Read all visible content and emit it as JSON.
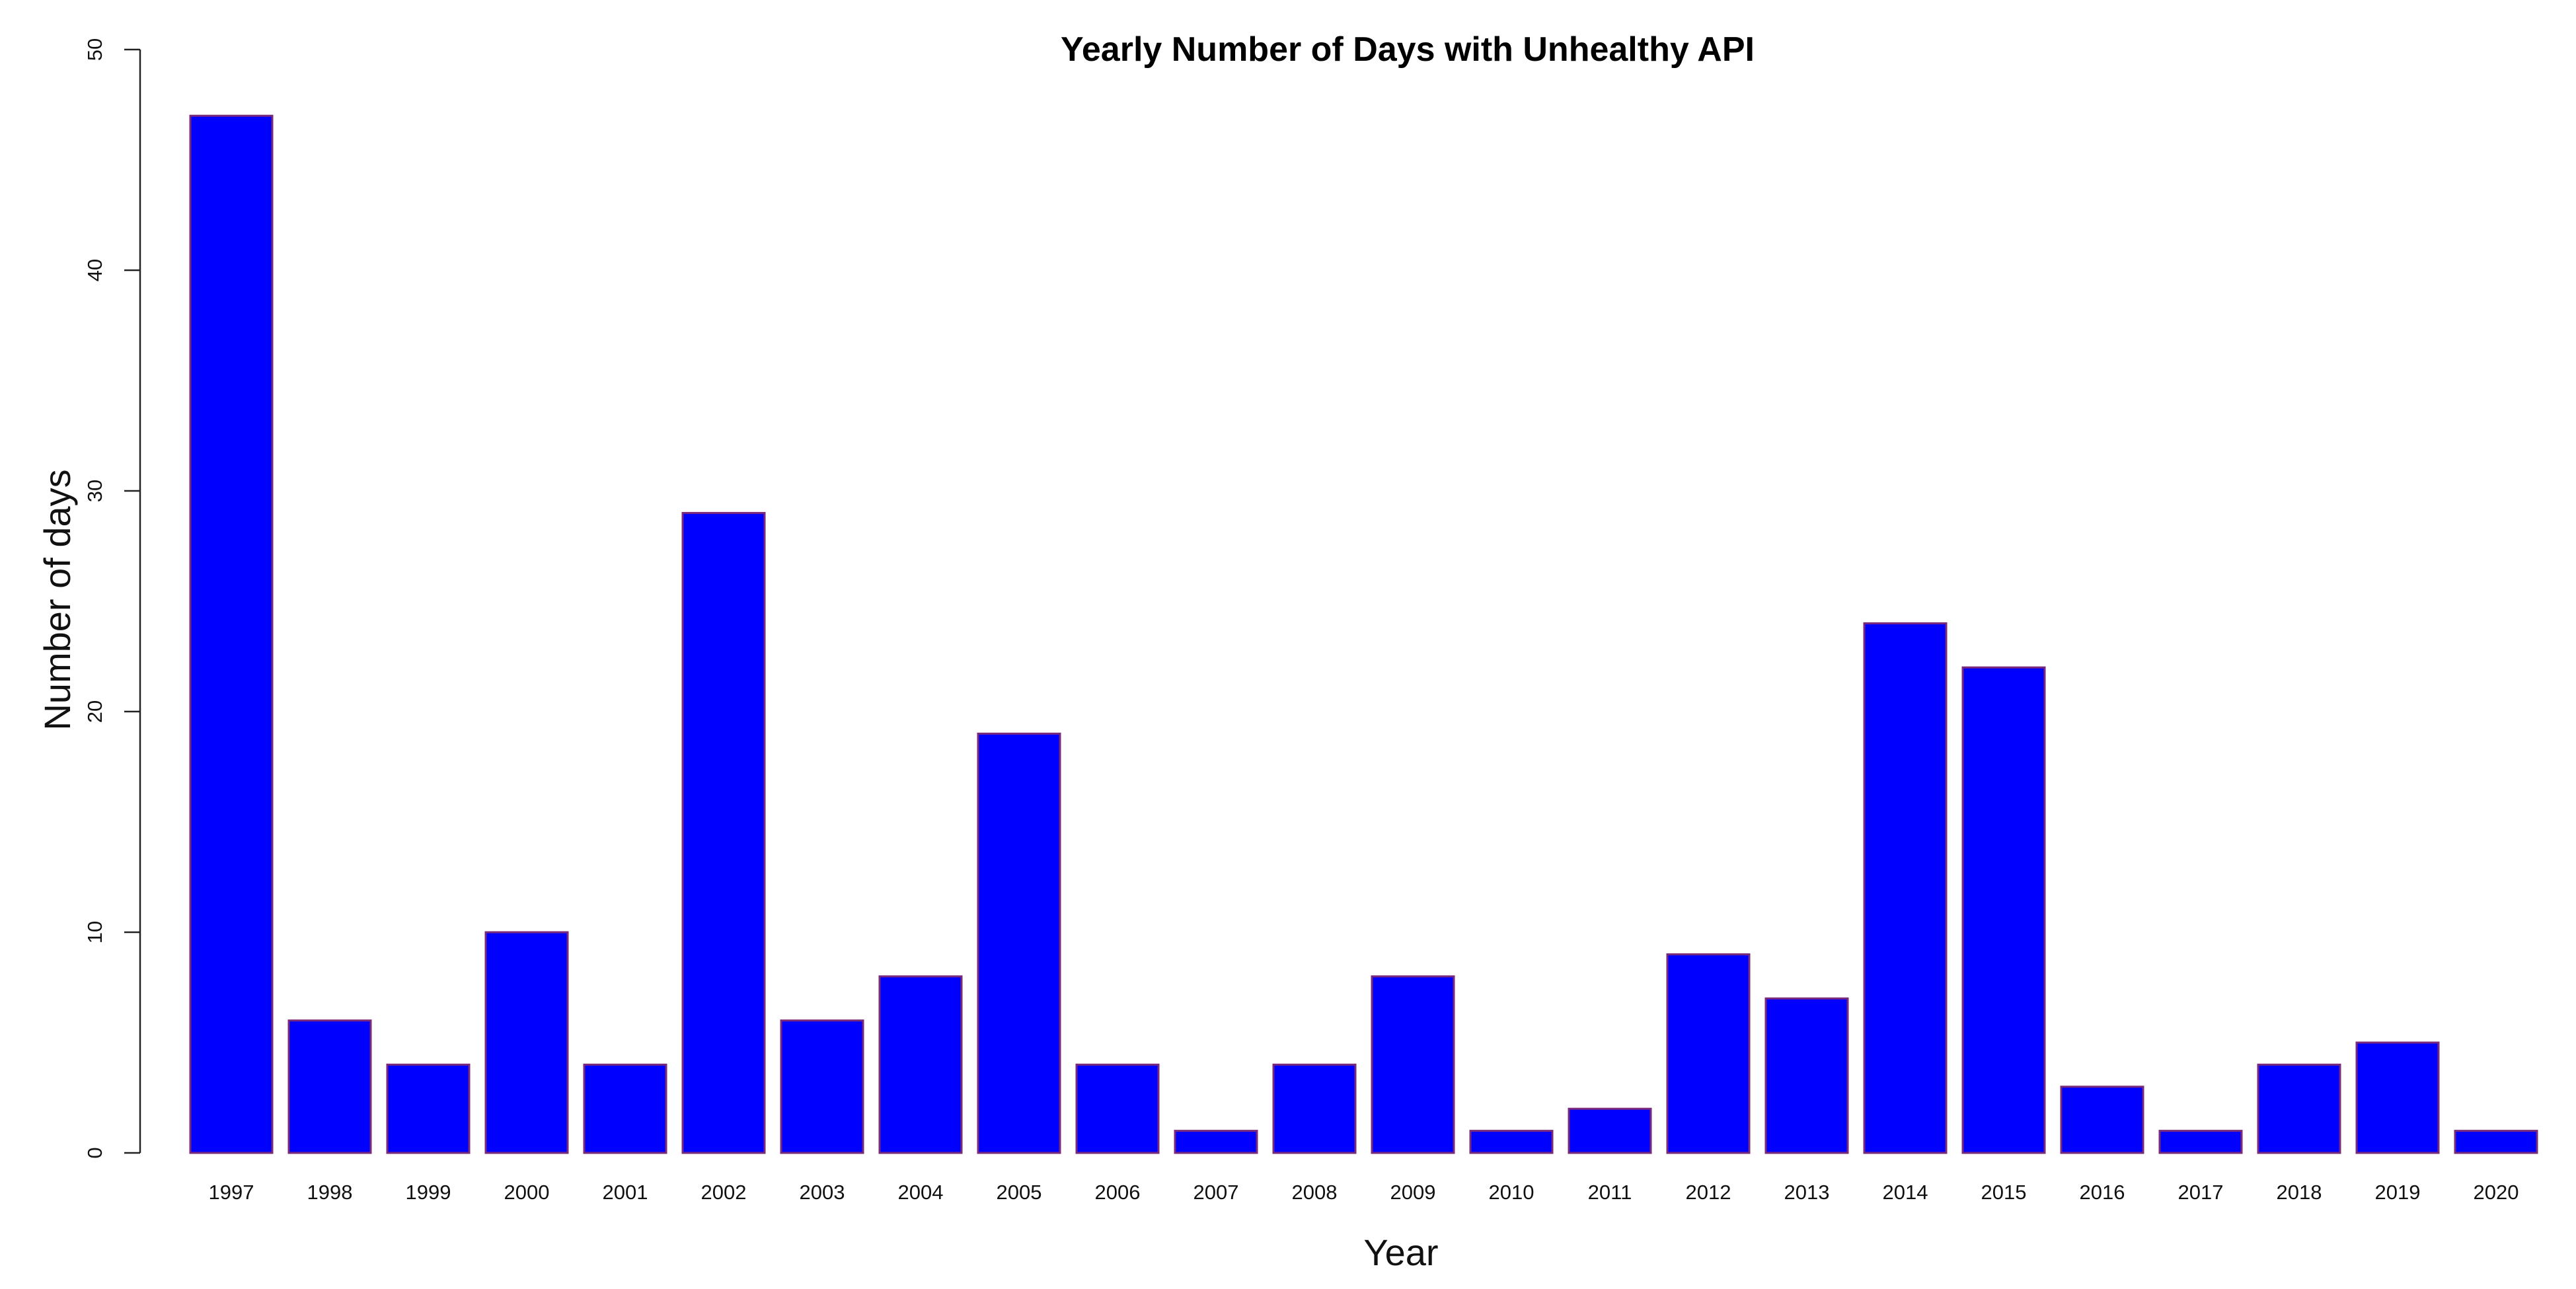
{
  "chart_data": {
    "type": "bar",
    "title": "Yearly Number of Days with Unhealthy API",
    "xlabel": "Year",
    "ylabel": "Number of days",
    "categories": [
      "1997",
      "1998",
      "1999",
      "2000",
      "2001",
      "2002",
      "2003",
      "2004",
      "2005",
      "2006",
      "2007",
      "2008",
      "2009",
      "2010",
      "2011",
      "2012",
      "2013",
      "2014",
      "2015",
      "2016",
      "2017",
      "2018",
      "2019",
      "2020"
    ],
    "values": [
      47,
      6,
      4,
      10,
      4,
      29,
      6,
      8,
      19,
      4,
      1,
      4,
      8,
      1,
      2,
      9,
      7,
      24,
      22,
      3,
      1,
      4,
      5,
      1
    ],
    "ylim": [
      0,
      50
    ],
    "yticks": [
      0,
      10,
      20,
      30,
      40,
      50
    ],
    "grid": false,
    "legend": "none",
    "bar_color": "#0000ff",
    "bar_border_color": "#7a2a7a"
  }
}
